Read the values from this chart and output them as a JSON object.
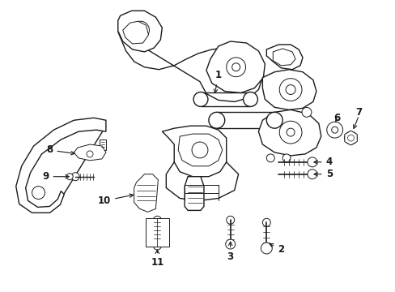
{
  "background_color": "#ffffff",
  "line_color": "#1a1a1a",
  "figsize": [
    4.89,
    3.6
  ],
  "dpi": 100,
  "lw_main": 1.0,
  "lw_thin": 0.7,
  "lw_bold": 1.3,
  "label_fontsize": 8.5
}
